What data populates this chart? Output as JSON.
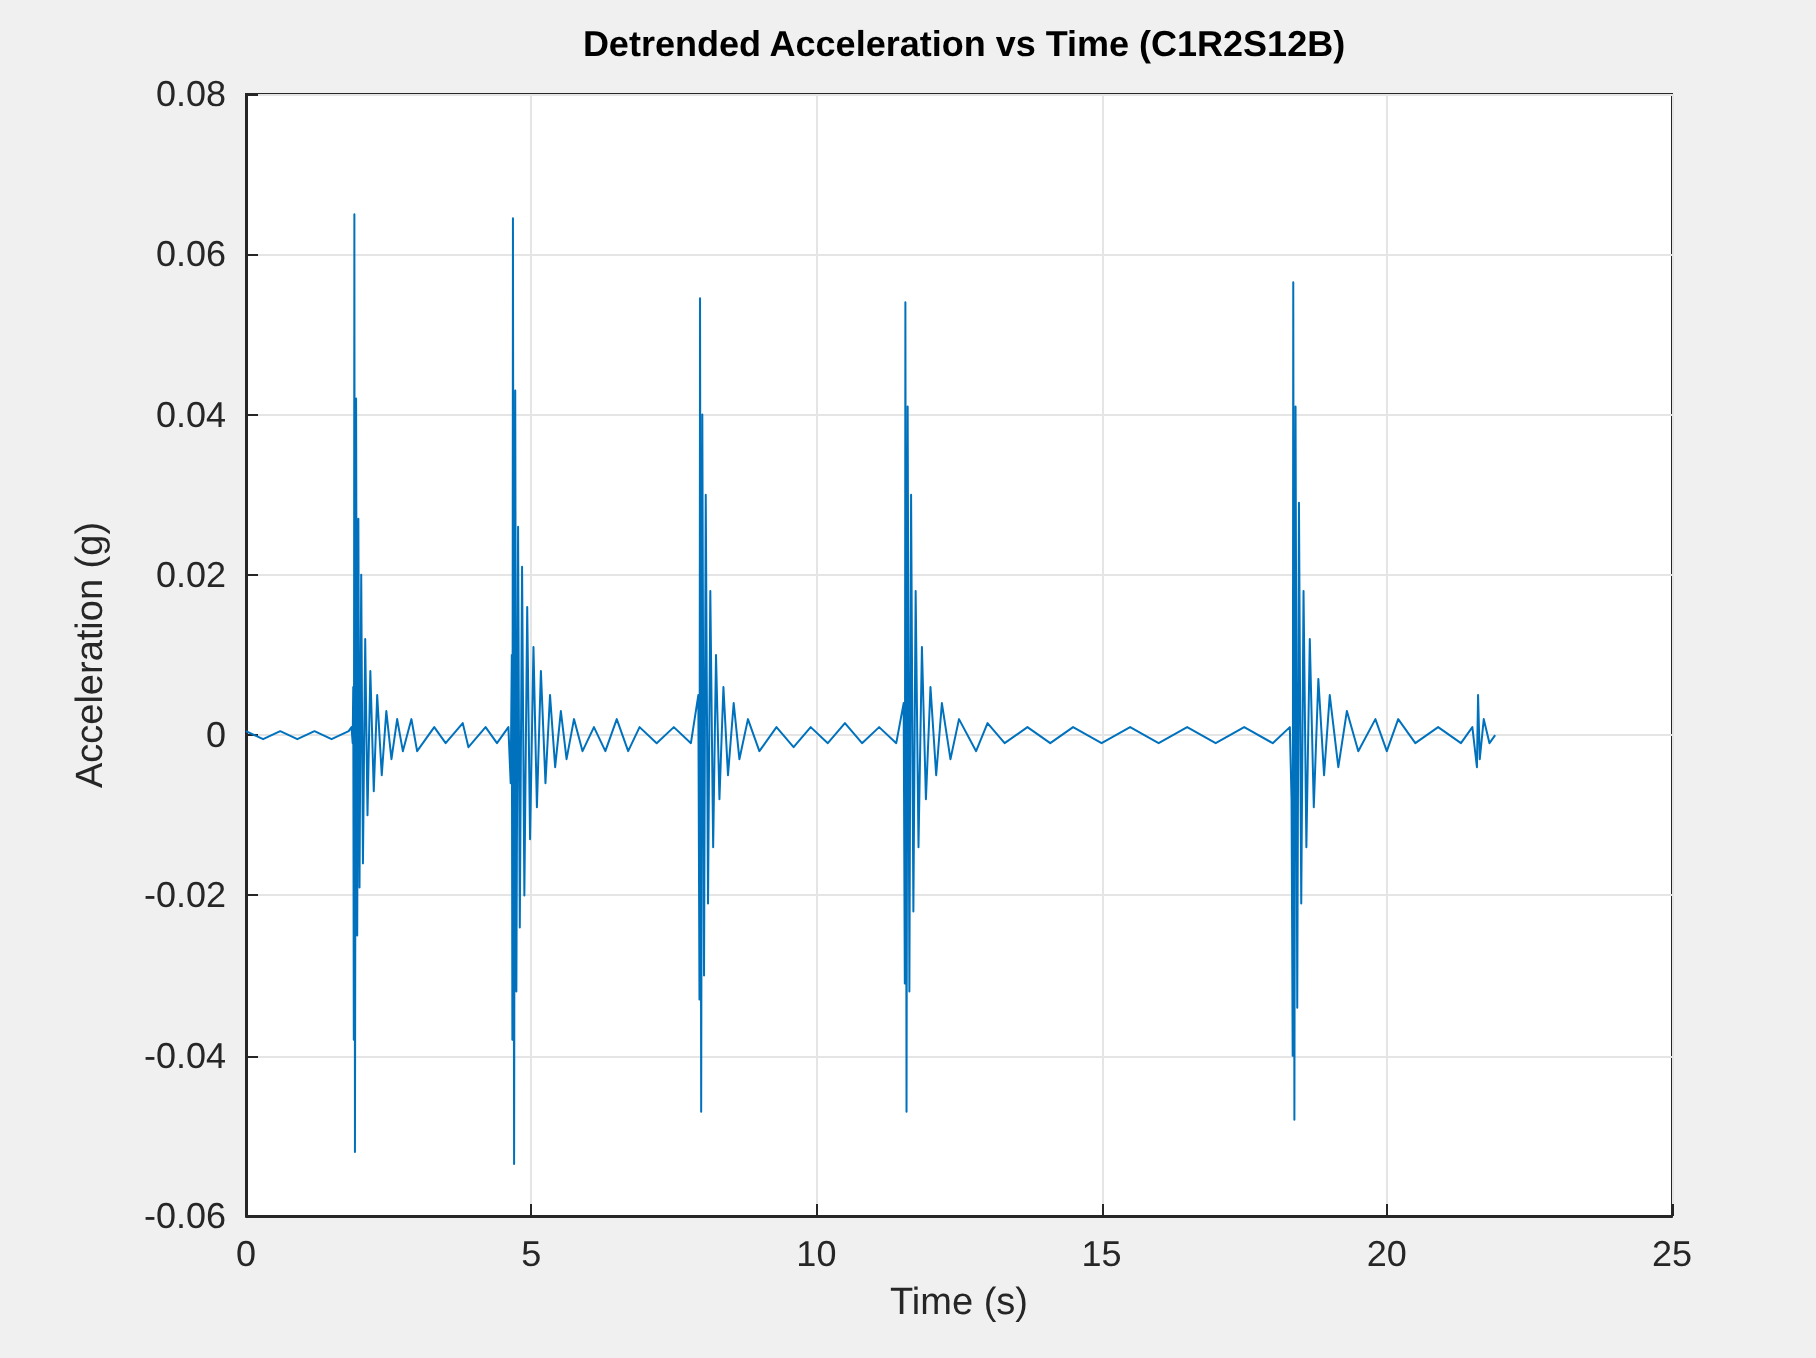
{
  "chart_data": {
    "type": "line",
    "title": "Detrended Acceleration vs Time (C1R2S12B)",
    "xlabel": "Time (s)",
    "ylabel": "Acceleration (g)",
    "xlim": [
      0,
      25
    ],
    "xticks": [
      0,
      5,
      10,
      15,
      20,
      25
    ],
    "ylim": [
      -0.06,
      0.08
    ],
    "yticks": [
      -0.06,
      -0.04,
      -0.02,
      0,
      0.02,
      0.04,
      0.06,
      0.08
    ],
    "grid": true,
    "marker": "none",
    "line_style": "solid",
    "series": [
      {
        "color": "#0072bd",
        "x": [
          0,
          0.3,
          0.6,
          0.9,
          1.2,
          1.5,
          1.8,
          1.85,
          1.87,
          1.88,
          1.89,
          1.9,
          1.91,
          1.93,
          1.95,
          1.97,
          1.99,
          2.02,
          2.05,
          2.09,
          2.13,
          2.18,
          2.24,
          2.3,
          2.38,
          2.46,
          2.55,
          2.65,
          2.75,
          2.9,
          3.0,
          3.3,
          3.5,
          3.8,
          3.9,
          4.2,
          4.4,
          4.6,
          4.64,
          4.66,
          4.67,
          4.68,
          4.7,
          4.72,
          4.74,
          4.77,
          4.8,
          4.84,
          4.88,
          4.93,
          4.98,
          5.04,
          5.1,
          5.17,
          5.25,
          5.33,
          5.42,
          5.52,
          5.62,
          5.75,
          5.9,
          6.1,
          6.3,
          6.5,
          6.7,
          6.9,
          7.2,
          7.5,
          7.8,
          7.93,
          7.95,
          7.96,
          7.98,
          8.0,
          8.03,
          8.06,
          8.1,
          8.14,
          8.19,
          8.24,
          8.3,
          8.37,
          8.45,
          8.55,
          8.65,
          8.8,
          9.0,
          9.3,
          9.6,
          9.9,
          10.2,
          10.5,
          10.8,
          11.1,
          11.4,
          11.53,
          11.55,
          11.56,
          11.58,
          11.6,
          11.63,
          11.66,
          11.7,
          11.74,
          11.79,
          11.85,
          11.92,
          12.0,
          12.1,
          12.2,
          12.35,
          12.5,
          12.8,
          13.0,
          13.3,
          13.7,
          14.1,
          14.5,
          15.0,
          15.5,
          16.0,
          16.5,
          17.0,
          17.5,
          18.0,
          18.3,
          18.33,
          18.35,
          18.36,
          18.38,
          18.4,
          18.43,
          18.46,
          18.5,
          18.54,
          18.59,
          18.65,
          18.72,
          18.8,
          18.9,
          19.0,
          19.15,
          19.3,
          19.5,
          19.8,
          20.0,
          20.2,
          20.5,
          20.9,
          21.3,
          21.5,
          21.58,
          21.6,
          21.63,
          21.7,
          21.8,
          21.9
        ],
        "values": [
          0.0005,
          -0.0005,
          0.0005,
          -0.0005,
          0.0005,
          -0.0005,
          0.0005,
          0.001,
          -0.001,
          0.006,
          -0.038,
          0.065,
          -0.052,
          0.042,
          -0.025,
          0.027,
          -0.019,
          0.02,
          -0.016,
          0.012,
          -0.01,
          0.008,
          -0.007,
          0.005,
          -0.005,
          0.003,
          -0.003,
          0.002,
          -0.002,
          0.002,
          -0.002,
          0.001,
          -0.001,
          0.0015,
          -0.0015,
          0.001,
          -0.001,
          0.001,
          -0.006,
          0.01,
          -0.038,
          0.0645,
          -0.0535,
          0.043,
          -0.032,
          0.026,
          -0.024,
          0.021,
          -0.02,
          0.016,
          -0.013,
          0.011,
          -0.009,
          0.008,
          -0.006,
          0.005,
          -0.004,
          0.003,
          -0.003,
          0.002,
          -0.002,
          0.001,
          -0.002,
          0.002,
          -0.002,
          0.001,
          -0.001,
          0.001,
          -0.001,
          0.005,
          -0.033,
          0.0545,
          -0.047,
          0.04,
          -0.03,
          0.03,
          -0.021,
          0.018,
          -0.014,
          0.01,
          -0.008,
          0.006,
          -0.005,
          0.004,
          -0.003,
          0.002,
          -0.002,
          0.001,
          -0.0015,
          0.001,
          -0.001,
          0.0015,
          -0.001,
          0.001,
          -0.001,
          0.004,
          -0.031,
          0.054,
          -0.047,
          0.041,
          -0.032,
          0.03,
          -0.022,
          0.018,
          -0.014,
          0.011,
          -0.008,
          0.006,
          -0.005,
          0.004,
          -0.003,
          0.002,
          -0.002,
          0.0015,
          -0.001,
          0.001,
          -0.001,
          0.001,
          -0.001,
          0.001,
          -0.001,
          0.001,
          -0.001,
          0.001,
          -0.001,
          0.001,
          -0.008,
          -0.04,
          0.0565,
          -0.048,
          0.041,
          -0.034,
          0.029,
          -0.021,
          0.018,
          -0.014,
          0.012,
          -0.009,
          0.007,
          -0.005,
          0.005,
          -0.004,
          0.003,
          -0.002,
          0.002,
          -0.002,
          0.002,
          -0.001,
          0.001,
          -0.001,
          0.001,
          -0.004,
          0.005,
          -0.003,
          0.002,
          -0.001,
          0
        ]
      }
    ]
  }
}
